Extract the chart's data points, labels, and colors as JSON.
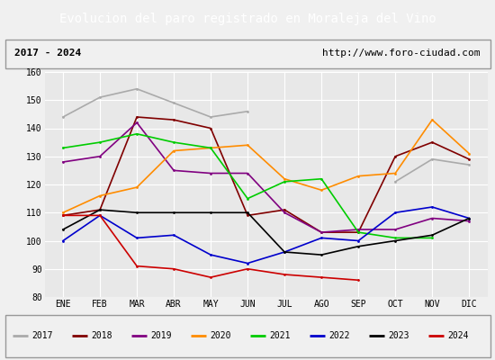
{
  "title": "Evolucion del paro registrado en Moraleja del Vino",
  "subtitle_left": "2017 - 2024",
  "subtitle_right": "http://www.foro-ciudad.com",
  "months": [
    "ENE",
    "FEB",
    "MAR",
    "ABR",
    "MAY",
    "JUN",
    "JUL",
    "AGO",
    "SEP",
    "OCT",
    "NOV",
    "DIC"
  ],
  "ylim": [
    80,
    160
  ],
  "yticks": [
    80,
    90,
    100,
    110,
    120,
    130,
    140,
    150,
    160
  ],
  "series": {
    "2017": {
      "color": "#aaaaaa",
      "values": [
        144,
        151,
        154,
        149,
        144,
        146,
        null,
        null,
        null,
        121,
        129,
        127
      ]
    },
    "2018": {
      "color": "#800000",
      "values": [
        109,
        111,
        144,
        143,
        140,
        109,
        111,
        103,
        103,
        130,
        135,
        129
      ]
    },
    "2019": {
      "color": "#800080",
      "values": [
        128,
        130,
        142,
        125,
        124,
        124,
        110,
        103,
        104,
        104,
        108,
        107
      ]
    },
    "2020": {
      "color": "#ff8c00",
      "values": [
        110,
        116,
        119,
        132,
        133,
        134,
        122,
        118,
        123,
        124,
        143,
        131
      ]
    },
    "2021": {
      "color": "#00cc00",
      "values": [
        133,
        135,
        138,
        135,
        133,
        115,
        121,
        122,
        103,
        101,
        101,
        null
      ]
    },
    "2022": {
      "color": "#0000cc",
      "values": [
        100,
        109,
        101,
        102,
        95,
        92,
        96,
        101,
        100,
        110,
        112,
        108
      ]
    },
    "2023": {
      "color": "#000000",
      "values": [
        104,
        111,
        110,
        110,
        110,
        110,
        96,
        95,
        98,
        100,
        102,
        108
      ]
    },
    "2024": {
      "color": "#cc0000",
      "values": [
        109,
        109,
        91,
        90,
        87,
        90,
        88,
        87,
        86,
        null,
        null,
        null
      ]
    }
  },
  "background_color": "#f0f0f0",
  "plot_bg_color": "#e8e8e8",
  "title_bg_color": "#4472c4",
  "title_text_color": "#ffffff",
  "grid_color": "#ffffff",
  "title_fontsize": 10,
  "subtitle_fontsize": 8,
  "tick_fontsize": 7,
  "legend_fontsize": 7
}
